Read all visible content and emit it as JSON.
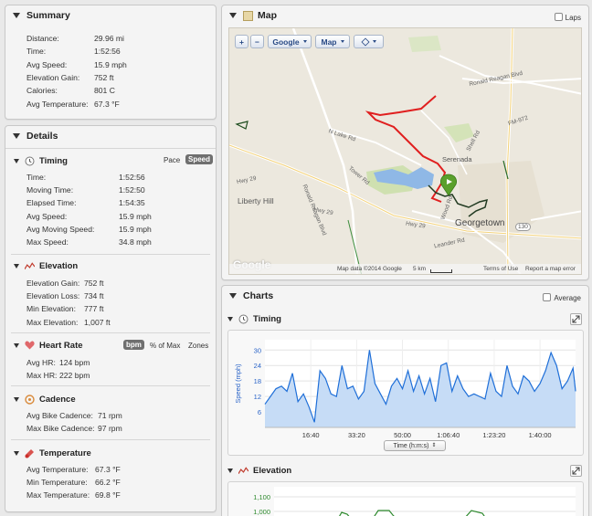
{
  "summary": {
    "title": "Summary",
    "rows": [
      {
        "label": "Distance:",
        "value": "29.96 mi"
      },
      {
        "label": "Time:",
        "value": "1:52:56"
      },
      {
        "label": "Avg Speed:",
        "value": "15.9 mph"
      },
      {
        "label": "Elevation Gain:",
        "value": "752 ft"
      },
      {
        "label": "Calories:",
        "value": "801 C"
      },
      {
        "label": "Avg Temperature:",
        "value": "67.3 °F"
      }
    ]
  },
  "details": {
    "title": "Details",
    "timing": {
      "title": "Timing",
      "toggle_pace": "Pace",
      "toggle_speed": "Speed",
      "rows": [
        {
          "label": "Time:",
          "value": "1:52:56"
        },
        {
          "label": "Moving Time:",
          "value": "1:52:50"
        },
        {
          "label": "Elapsed Time:",
          "value": "1:54:35"
        },
        {
          "label": "Avg Speed:",
          "value": "15.9 mph"
        },
        {
          "label": "Avg Moving Speed:",
          "value": "15.9 mph"
        },
        {
          "label": "Max Speed:",
          "value": "34.8 mph"
        }
      ]
    },
    "elevation": {
      "title": "Elevation",
      "rows": [
        {
          "label": "Elevation Gain:",
          "value": "752 ft"
        },
        {
          "label": "Elevation Loss:",
          "value": "734 ft"
        },
        {
          "label": "Min Elevation:",
          "value": "777 ft"
        },
        {
          "label": "Max Elevation:",
          "value": "1,007 ft"
        }
      ]
    },
    "heart_rate": {
      "title": "Heart Rate",
      "toggle_bpm": "bpm",
      "toggle_max": "% of Max",
      "toggle_zones": "Zones",
      "rows": [
        {
          "label": "Avg HR:",
          "value": "124 bpm"
        },
        {
          "label": "Max HR:",
          "value": "222 bpm"
        }
      ]
    },
    "cadence": {
      "title": "Cadence",
      "rows": [
        {
          "label": "Avg Bike Cadence:",
          "value": "71 rpm"
        },
        {
          "label": "Max Bike Cadence:",
          "value": "97 rpm"
        }
      ]
    },
    "temperature": {
      "title": "Temperature",
      "rows": [
        {
          "label": "Avg Temperature:",
          "value": "67.3 °F"
        },
        {
          "label": "Min Temperature:",
          "value": "66.2 °F"
        },
        {
          "label": "Max Temperature:",
          "value": "69.8 °F"
        }
      ]
    }
  },
  "map": {
    "title": "Map",
    "laps_label": "Laps",
    "zoom_in": "+",
    "zoom_out": "−",
    "provider_button": "Google",
    "type_button": "Map",
    "labels": {
      "reagan_blvd": "Ronald Reagan Blvd",
      "lake_rd": "N Lake Rd",
      "reagan_blvd2": "Ronald Reagan Blvd",
      "tower_rd": "Tower Rd",
      "hwy29_a": "Hwy 29",
      "hwy29_b": "Hwy 29",
      "hwy29_c": "Hwy 29",
      "liberty_hill": "Liberty Hill",
      "serenada": "Serenada",
      "georgetown": "Georgetown",
      "fm972": "FM-972",
      "shell_rd": "Shell Rd",
      "wood_rd": "Wood Rd",
      "leander_rd": "Leander Rd",
      "i130": "130"
    },
    "logo": "Google",
    "footer": {
      "data": "Map data ©2014 Google",
      "scale": "5 km",
      "terms": "Terms of Use",
      "report": "Report a map error"
    }
  },
  "charts": {
    "title": "Charts",
    "average_label": "Average",
    "timing_title": "Timing",
    "elevation_title": "Elevation",
    "x_axis_select": "Time (h:m:s)"
  },
  "chart_data": [
    {
      "type": "area",
      "title": "Timing",
      "ylabel": "Speed (mph)",
      "xlabel": "Time (h:m:s)",
      "ylim": [
        0,
        34
      ],
      "yticks": [
        6,
        12,
        18,
        24,
        30
      ],
      "xticks": [
        "16:40",
        "33:20",
        "50:00",
        "1:06:40",
        "1:23:20",
        "1:40:00"
      ],
      "xtick_seconds": [
        1000,
        2000,
        3000,
        4000,
        5000,
        6000
      ],
      "xlim_seconds": [
        0,
        6775
      ],
      "series": [
        {
          "name": "Speed",
          "x": [
            0,
            120,
            240,
            360,
            480,
            600,
            720,
            840,
            960,
            1080,
            1200,
            1320,
            1440,
            1560,
            1680,
            1800,
            1920,
            2040,
            2160,
            2280,
            2400,
            2520,
            2640,
            2760,
            2880,
            3000,
            3120,
            3240,
            3360,
            3480,
            3600,
            3720,
            3840,
            3960,
            4080,
            4200,
            4320,
            4440,
            4560,
            4680,
            4800,
            4920,
            5040,
            5160,
            5280,
            5400,
            5520,
            5640,
            5760,
            5880,
            6000,
            6120,
            6240,
            6360,
            6480,
            6600,
            6720,
            6775
          ],
          "y": [
            9,
            12,
            15,
            16,
            14,
            21,
            10,
            13,
            8,
            2,
            22,
            19,
            13,
            12,
            24,
            15,
            16,
            11,
            14,
            30,
            17,
            13,
            9,
            16,
            19,
            15,
            22,
            14,
            20,
            13,
            19,
            10,
            24,
            25,
            14,
            20,
            15,
            12,
            13,
            12,
            11,
            21,
            14,
            12,
            24,
            16,
            13,
            20,
            18,
            14,
            17,
            22,
            29,
            24,
            15,
            18,
            23,
            14
          ]
        }
      ]
    },
    {
      "type": "area",
      "title": "Elevation",
      "yticks": [
        1000,
        1100
      ],
      "ytick_labels": [
        "1,000",
        "1,100"
      ],
      "series": [
        {
          "name": "Elevation",
          "values": []
        }
      ]
    }
  ]
}
